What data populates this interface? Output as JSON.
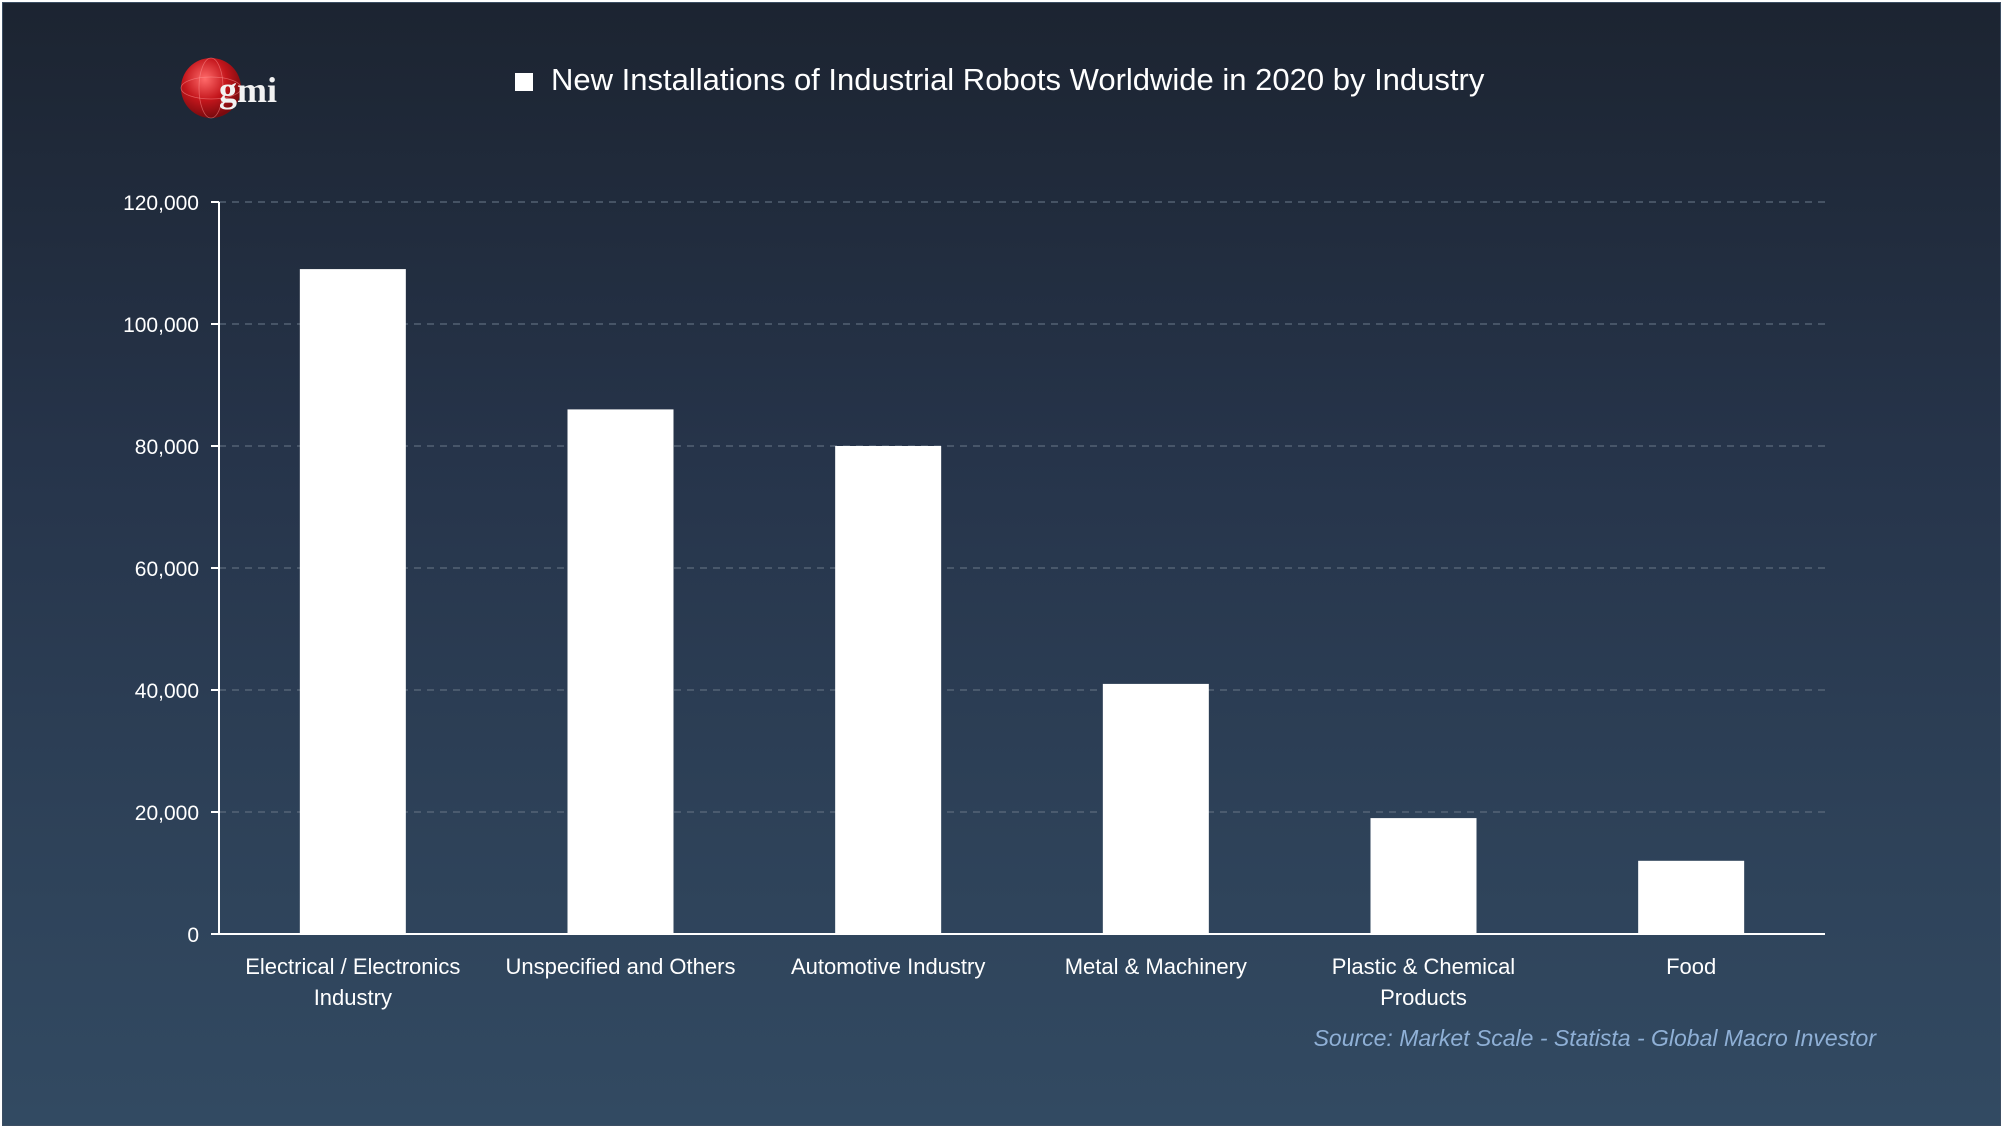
{
  "logo": {
    "text": "gmi"
  },
  "chart_data": {
    "type": "bar",
    "categories": [
      [
        "Electrical / Electronics",
        "Industry"
      ],
      [
        "Unspecified and Others"
      ],
      [
        "Automotive Industry"
      ],
      [
        "Metal & Machinery"
      ],
      [
        "Plastic & Chemical",
        "Products"
      ],
      [
        "Food"
      ]
    ],
    "series": [
      {
        "name": "New Installations of Industrial Robots Worldwide in 2020 by Industry",
        "values": [
          109000,
          86000,
          80000,
          41000,
          19000,
          12000
        ]
      }
    ],
    "ylim": [
      0,
      120000
    ],
    "yticks": [
      "0",
      "20,000",
      "40,000",
      "60,000",
      "80,000",
      "100,000",
      "120,000"
    ],
    "grid": true,
    "legend_position": "top",
    "bar_color": "#ffffff",
    "grid_color": "#5d6b7d"
  },
  "source": "Source: Market Scale - Statista - Global Macro Investor"
}
